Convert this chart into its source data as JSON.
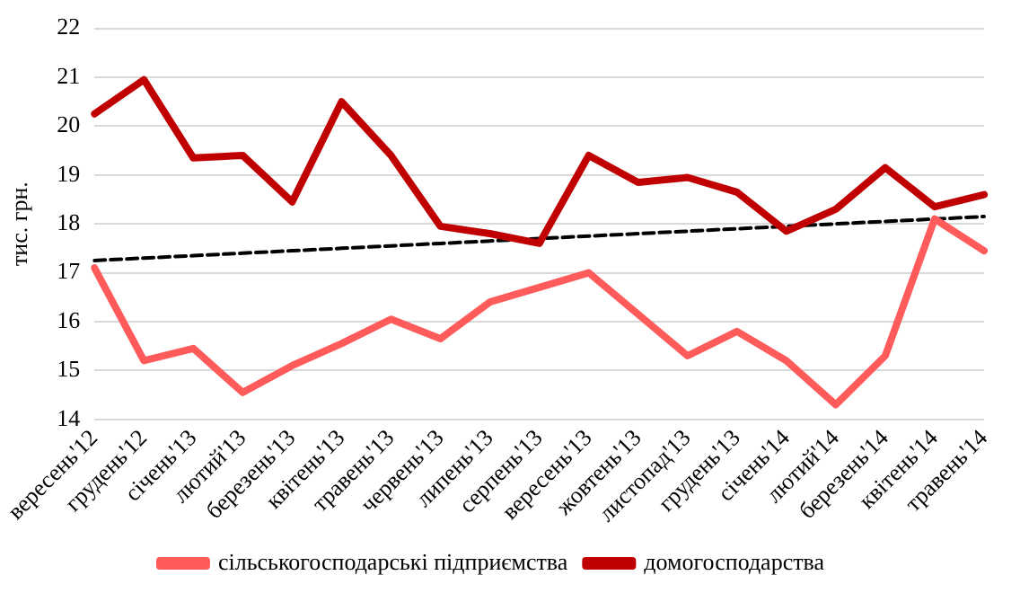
{
  "chart_data": {
    "type": "line",
    "ylabel": "тис. грн.",
    "categories": [
      "вересень'12",
      "грудень'12",
      "січень'13",
      "лютий'13",
      "березень'13",
      "квітень'13",
      "травень'13",
      "червень'13",
      "липень'13",
      "серпень'13",
      "вересень'13",
      "жовтень'13",
      "листопад'13",
      "грудень'13",
      "січень'14",
      "лютий'14",
      "березень'14",
      "квітень'14",
      "травень'14"
    ],
    "series": [
      {
        "name": "сільськогосподарські підприємства",
        "color": "#ff5b5b",
        "values": [
          17.1,
          15.2,
          15.45,
          14.55,
          15.1,
          15.55,
          16.05,
          15.65,
          16.4,
          16.7,
          17.0,
          16.15,
          15.3,
          15.8,
          15.2,
          14.3,
          15.3,
          18.1,
          17.45
        ]
      },
      {
        "name": "домогосподарства",
        "color": "#c00000",
        "values": [
          20.25,
          20.95,
          19.35,
          19.4,
          18.45,
          20.5,
          19.4,
          17.95,
          17.8,
          17.6,
          19.4,
          18.85,
          18.95,
          18.65,
          17.85,
          18.3,
          19.15,
          18.35,
          18.6
        ]
      },
      {
        "type": "line",
        "color": "#000000",
        "line_style": "dashed",
        "values": [
          17.25,
          17.3,
          17.35,
          17.4,
          17.45,
          17.5,
          17.55,
          17.6,
          17.65,
          17.7,
          17.75,
          17.8,
          17.85,
          17.9,
          17.95,
          18.0,
          18.05,
          18.1,
          18.15
        ]
      }
    ],
    "ylim": [
      14,
      22
    ],
    "yticks": [
      14,
      15,
      16,
      17,
      18,
      19,
      20,
      21,
      22
    ],
    "grid": "y",
    "legend": "bottom"
  }
}
